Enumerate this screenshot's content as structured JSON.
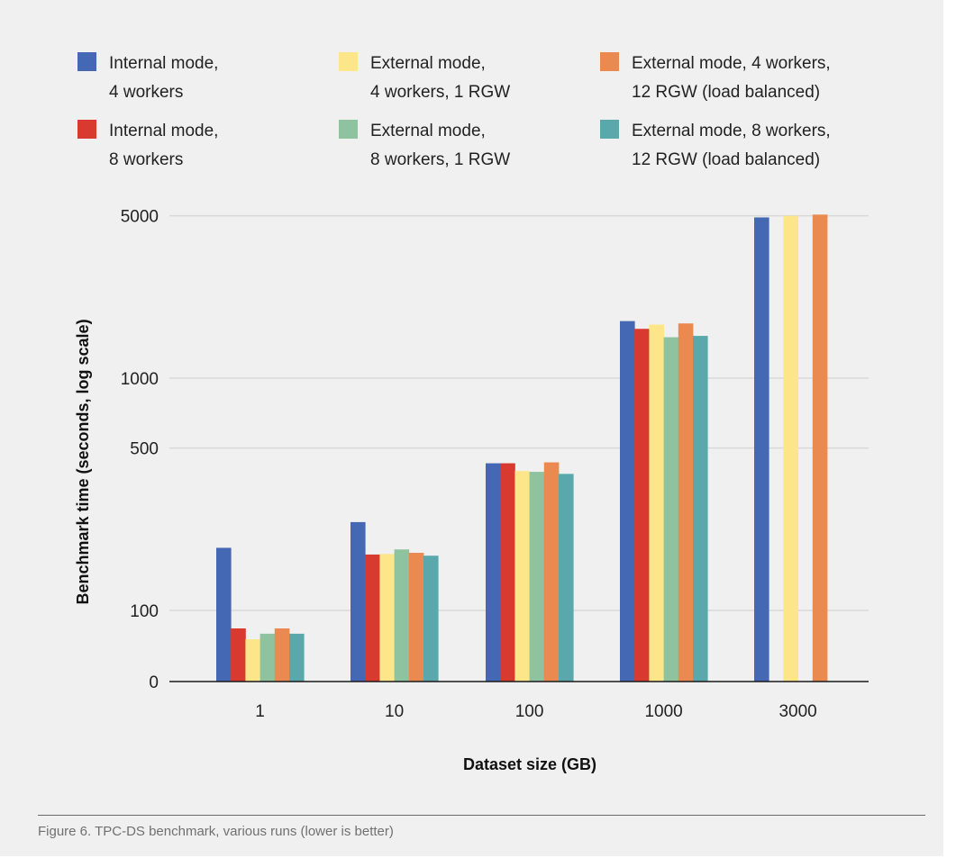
{
  "caption": "Figure 6. TPC-DS benchmark, various runs (lower is better)",
  "chart_data": {
    "type": "bar",
    "scale": "log",
    "title": "",
    "xlabel": "Dataset size (GB)",
    "ylabel": "Benchmark time (seconds, log scale)",
    "categories": [
      "1",
      "10",
      "100",
      "1000",
      "3000"
    ],
    "yticks": [
      {
        "value": 0,
        "label": "0"
      },
      {
        "value": 100,
        "label": "100"
      },
      {
        "value": 500,
        "label": "500"
      },
      {
        "value": 1000,
        "label": "1000"
      },
      {
        "value": 5000,
        "label": "5000"
      }
    ],
    "grid": true,
    "legend_position": "top",
    "series": [
      {
        "name": "Internal mode, 4 workers",
        "label_lines": [
          "Internal mode,",
          "4 workers"
        ],
        "color": "#4468b4",
        "values": [
          186,
          240,
          430,
          1760,
          4920
        ]
      },
      {
        "name": "Internal mode, 8 workers",
        "label_lines": [
          "Internal mode,",
          "8 workers"
        ],
        "color": "#d93a2f",
        "values": [
          89,
          174,
          430,
          1630,
          null
        ]
      },
      {
        "name": "External mode, 4 workers, 1 RGW",
        "label_lines": [
          "External mode,",
          "4 workers, 1 RGW"
        ],
        "color": "#fde68a",
        "values": [
          83,
          175,
          398,
          1700,
          5000
        ]
      },
      {
        "name": "External mode, 8 workers, 1 RGW",
        "label_lines": [
          "External mode,",
          "8 workers, 1 RGW"
        ],
        "color": "#8fc29e",
        "values": [
          86,
          183,
          395,
          1500,
          null
        ]
      },
      {
        "name": "External mode, 4 workers, 12 RGW (load balanced)",
        "label_lines": [
          "External mode, 4 workers,",
          "12 RGW (load balanced)"
        ],
        "color": "#eb8a50",
        "values": [
          89,
          177,
          434,
          1720,
          5060
        ]
      },
      {
        "name": "External mode, 8 workers, 12 RGW (load balanced)",
        "label_lines": [
          "External mode, 8 workers,",
          "12 RGW (load balanced)"
        ],
        "color": "#5aa8ab",
        "values": [
          86,
          172,
          387,
          1520,
          null
        ]
      }
    ]
  }
}
